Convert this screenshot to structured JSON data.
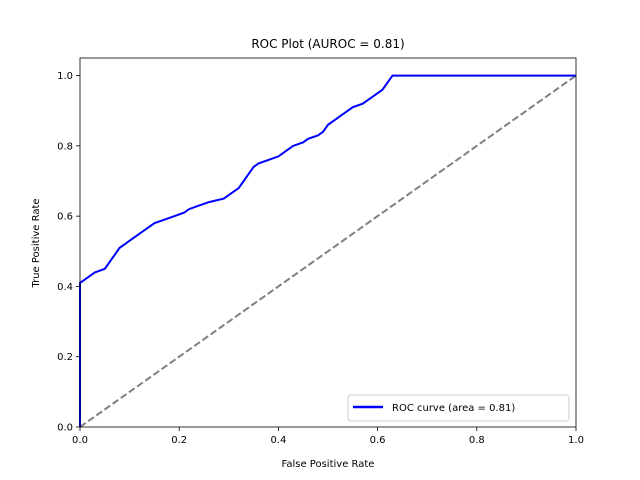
{
  "chart_data": {
    "type": "line",
    "title": "ROC Plot (AUROC = 0.81)",
    "xlabel": "False Positive Rate",
    "ylabel": "True Positive Rate",
    "xlim": [
      0,
      1
    ],
    "ylim": [
      0,
      1.05
    ],
    "xticks": [
      "0.0",
      "0.2",
      "0.4",
      "0.6",
      "0.8",
      "1.0"
    ],
    "yticks": [
      "0.0",
      "0.2",
      "0.4",
      "0.6",
      "0.8",
      "1.0"
    ],
    "grid": false,
    "legend_position": "lower-right",
    "series": [
      {
        "name": "ROC curve (area = 0.81)",
        "color": "#0000ff",
        "style": "solid",
        "x": [
          0.0,
          0.0,
          0.01,
          0.02,
          0.03,
          0.05,
          0.06,
          0.07,
          0.08,
          0.09,
          0.1,
          0.11,
          0.13,
          0.14,
          0.15,
          0.17,
          0.19,
          0.21,
          0.22,
          0.24,
          0.26,
          0.29,
          0.3,
          0.32,
          0.33,
          0.34,
          0.35,
          0.36,
          0.38,
          0.4,
          0.42,
          0.43,
          0.45,
          0.46,
          0.48,
          0.49,
          0.5,
          0.51,
          0.53,
          0.55,
          0.57,
          0.58,
          0.59,
          0.6,
          0.61,
          0.62,
          0.63,
          1.0
        ],
        "y": [
          0.0,
          0.41,
          0.42,
          0.43,
          0.44,
          0.45,
          0.47,
          0.49,
          0.51,
          0.52,
          0.53,
          0.54,
          0.56,
          0.57,
          0.58,
          0.59,
          0.6,
          0.61,
          0.62,
          0.63,
          0.64,
          0.65,
          0.66,
          0.68,
          0.7,
          0.72,
          0.74,
          0.75,
          0.76,
          0.77,
          0.79,
          0.8,
          0.81,
          0.82,
          0.83,
          0.84,
          0.86,
          0.87,
          0.89,
          0.91,
          0.92,
          0.93,
          0.94,
          0.95,
          0.96,
          0.98,
          1.0,
          1.0
        ]
      },
      {
        "name": "",
        "color": "#808080",
        "style": "dashed",
        "x": [
          0,
          1
        ],
        "y": [
          0,
          1
        ]
      }
    ]
  }
}
